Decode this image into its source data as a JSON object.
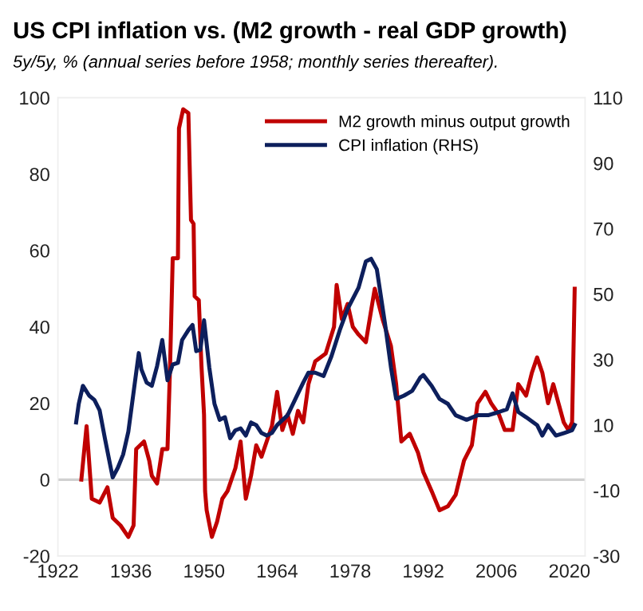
{
  "chart_data": {
    "type": "line",
    "title": "US CPI inflation vs. (M2 growth - real GDP growth)",
    "subtitle": "5y/5y, % (annual series before 1958; monthly series thereafter).",
    "xlim": [
      1922,
      2023
    ],
    "xticks": [
      1922,
      1936,
      1950,
      1964,
      1978,
      1992,
      2006,
      2020
    ],
    "ylim": [
      -20,
      100
    ],
    "yticks": [
      -20,
      0,
      20,
      40,
      60,
      80,
      100
    ],
    "y2lim": [
      -30,
      110
    ],
    "y2ticks": [
      -30,
      -10,
      10,
      30,
      50,
      70,
      90,
      110
    ],
    "legend": "top right",
    "grid": false,
    "ref_lines": [
      {
        "axis": "y",
        "value": 0,
        "color": "#d0d0d0"
      }
    ],
    "series": [
      {
        "name": "M2 growth minus output growth",
        "color": "#c00000",
        "x": [
          1926.5,
          1927.5,
          1928.5,
          1930,
          1931.5,
          1932.5,
          1934,
          1935.5,
          1936.5,
          1937,
          1938.5,
          1939.5,
          1940,
          1941,
          1942,
          1943,
          1943.5,
          1944,
          1945,
          1945.2,
          1946,
          1947,
          1947.5,
          1948,
          1948.2,
          1949,
          1949.5,
          1950,
          1950.2,
          1950.5,
          1951.5,
          1952.5,
          1953.5,
          1954.5,
          1955.5,
          1956,
          1957,
          1958,
          1959,
          1960,
          1961,
          1962,
          1963,
          1964,
          1965,
          1966,
          1967,
          1968,
          1969,
          1970,
          1971.3,
          1973.3,
          1974.9,
          1975.4,
          1976.4,
          1977.5,
          1978.5,
          1979.6,
          1981,
          1982.7,
          1984.2,
          1985.8,
          1986.8,
          1987.8,
          1989.4,
          1991,
          1992,
          1993.6,
          1995.1,
          1996.7,
          1998.2,
          1999.8,
          2001.3,
          2002.4,
          2003.9,
          2005,
          2006.5,
          2007.6,
          2009.1,
          2010.2,
          2011.7,
          2012.8,
          2013.8,
          2014.8,
          2015.9,
          2016.9,
          2017.9,
          2018.9,
          2019.8,
          2020.5,
          2021
        ],
        "values": [
          0,
          14,
          -5,
          -6,
          -2,
          -10,
          -12,
          -15,
          -12,
          8,
          10,
          5,
          1,
          -1,
          8,
          8,
          30,
          58,
          58,
          92,
          97,
          96,
          68,
          67,
          48,
          47,
          30,
          17,
          -3,
          -8,
          -15,
          -11,
          -5,
          -3,
          1,
          3,
          10,
          -5,
          1,
          9,
          6,
          10,
          14,
          23,
          13,
          17,
          12,
          18,
          15,
          25,
          31,
          33,
          40,
          51,
          42,
          46,
          40,
          38,
          36,
          50,
          42,
          35,
          25,
          10,
          12,
          7,
          2,
          -3,
          -8,
          -7,
          -4,
          5,
          9,
          20,
          23,
          20,
          17,
          13,
          13,
          25,
          22,
          28,
          32,
          28,
          20,
          25,
          20,
          15,
          13,
          15,
          50
        ]
      },
      {
        "name": "CPI inflation (RHS)",
        "color": "#0d1f5c",
        "axis": "y2",
        "x": [
          1925.5,
          1926,
          1926.8,
          1928,
          1929,
          1930,
          1931,
          1932,
          1932.5,
          1933.5,
          1934.5,
          1935.5,
          1936.5,
          1937.5,
          1938,
          1939,
          1940,
          1941,
          1942,
          1943,
          1944,
          1945,
          1945.8,
          1947,
          1947.8,
          1948.5,
          1949.3,
          1950,
          1951,
          1952,
          1953,
          1954,
          1955,
          1956,
          1957,
          1958,
          1959,
          1960,
          1961,
          1962,
          1963,
          1964,
          1966,
          1967.5,
          1969,
          1970,
          1971.3,
          1972.9,
          1974.4,
          1976,
          1977.5,
          1979.6,
          1981,
          1982,
          1983.1,
          1984.7,
          1985.8,
          1986.8,
          1988.3,
          1989.9,
          1991.4,
          1992,
          1993.6,
          1995.1,
          1996.7,
          1998.2,
          2000.3,
          2002.4,
          2004.4,
          2006.5,
          2008,
          2009.1,
          2010.2,
          2011.7,
          2013.8,
          2014.8,
          2015.9,
          2017.4,
          2019,
          2020.5,
          2021
        ],
        "values": [
          10.8,
          16.5,
          22,
          19,
          17.7,
          14.5,
          6,
          -2,
          -6,
          -3,
          1,
          8,
          20,
          32,
          27,
          23,
          22,
          28,
          36,
          23.7,
          28.5,
          29,
          36,
          39,
          40.6,
          32.6,
          33,
          42,
          27.7,
          16.5,
          11.6,
          12.4,
          6,
          8.4,
          9,
          6.8,
          10.8,
          10,
          7.6,
          6.8,
          7.6,
          10,
          13,
          18,
          23,
          26,
          26,
          25,
          31,
          39,
          45.5,
          52,
          60,
          60.8,
          57.6,
          40.6,
          27.7,
          18,
          19,
          20.5,
          24.5,
          25.3,
          22,
          18,
          16.5,
          13,
          11.6,
          13,
          13,
          14,
          14.8,
          19.7,
          14,
          12.4,
          10,
          6.8,
          10,
          6.8,
          7.6,
          8.4,
          10
        ]
      }
    ]
  }
}
